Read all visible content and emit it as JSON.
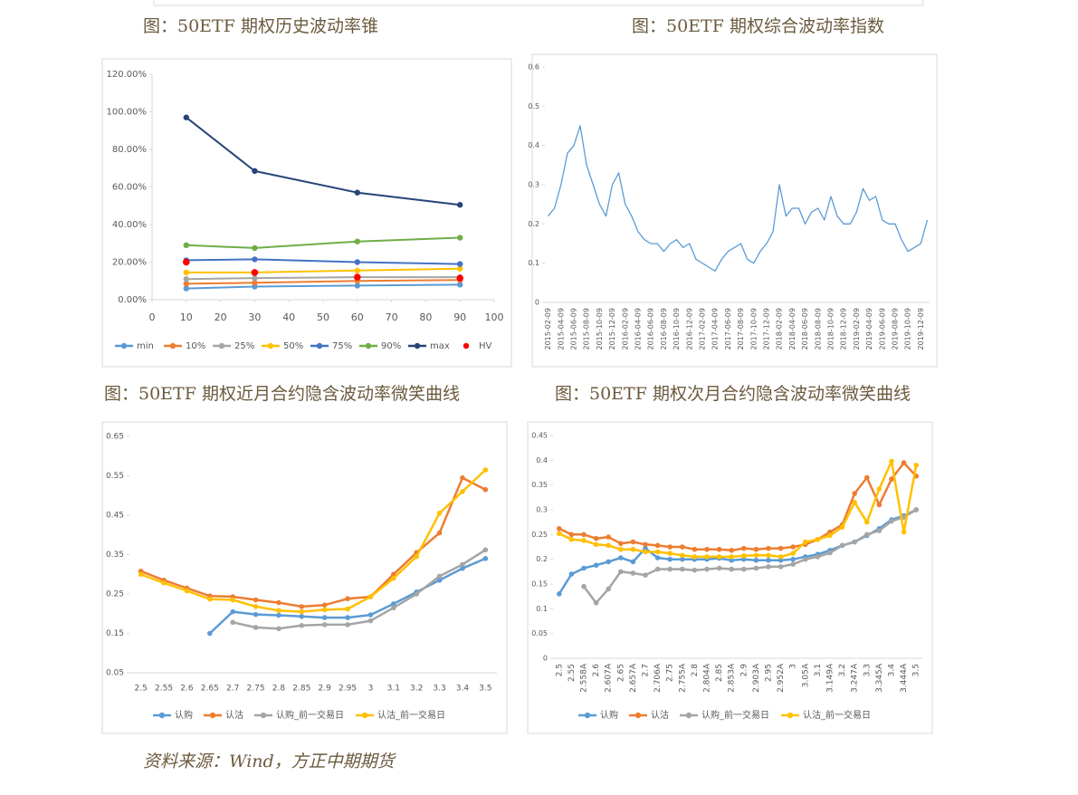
{
  "chart_data": [
    {
      "type": "line",
      "caption": "图：50ETF 期权历史波动率锥",
      "x": [
        10,
        30,
        60,
        90
      ],
      "xlim": [
        0,
        100
      ],
      "xticks": [
        0,
        10,
        20,
        30,
        40,
        50,
        60,
        70,
        80,
        90,
        100
      ],
      "ylim": [
        0,
        1.2
      ],
      "yticks": [
        {
          "value": 0,
          "label": "0.00%"
        },
        {
          "value": 0.2,
          "label": "20.00%"
        },
        {
          "value": 0.4,
          "label": "40.00%"
        },
        {
          "value": 0.6,
          "label": "60.00%"
        },
        {
          "value": 0.8,
          "label": "80.00%"
        },
        {
          "value": 1.0,
          "label": "100.00%"
        },
        {
          "value": 1.2,
          "label": "120.00%"
        }
      ],
      "markers": true,
      "series": [
        {
          "name": "min",
          "color": "#5b9bd5",
          "values": [
            0.06,
            0.07,
            0.075,
            0.08
          ]
        },
        {
          "name": "10%",
          "color": "#ed7d31",
          "values": [
            0.085,
            0.09,
            0.1,
            0.105
          ]
        },
        {
          "name": "25%",
          "color": "#a5a5a5",
          "values": [
            0.11,
            0.115,
            0.12,
            0.12
          ]
        },
        {
          "name": "50%",
          "color": "#ffc000",
          "values": [
            0.145,
            0.145,
            0.155,
            0.165
          ]
        },
        {
          "name": "75%",
          "color": "#4472c4",
          "values": [
            0.21,
            0.215,
            0.2,
            0.19
          ]
        },
        {
          "name": "90%",
          "color": "#70ad47",
          "values": [
            0.29,
            0.275,
            0.31,
            0.33
          ]
        },
        {
          "name": "max",
          "color": "#264478",
          "values": [
            0.97,
            0.685,
            0.57,
            0.505
          ]
        },
        {
          "name": "HV",
          "color": "#ff0000",
          "line": false,
          "values": [
            0.2,
            0.145,
            0.12,
            0.115
          ]
        }
      ]
    },
    {
      "type": "line",
      "caption": "图：50ETF 期权综合波动率指数",
      "categories": [
        "2015-02-09",
        null,
        "2015-04-09",
        null,
        "2015-06-09",
        null,
        "2015-08-09",
        null,
        "2015-10-09",
        null,
        "2015-12-09",
        null,
        "2016-02-09",
        null,
        "2016-04-09",
        null,
        "2016-06-09",
        null,
        "2016-08-09",
        null,
        "2016-10-09",
        null,
        "2016-12-09",
        null,
        "2017-02-09",
        null,
        "2017-04-09",
        null,
        "2017-06-09",
        null,
        "2017-08-09",
        null,
        "2017-10-09",
        null,
        "2017-12-09",
        null,
        "2018-02-09",
        null,
        "2018-04-09",
        null,
        "2018-06-09",
        null,
        "2018-08-09",
        null,
        "2018-10-09",
        null,
        "2018-12-09",
        null,
        "2019-02-09",
        null,
        "2019-04-09",
        null,
        "2019-06-09",
        null,
        "2019-08-09",
        null,
        "2019-10-09",
        null,
        "2019-12-09",
        null
      ],
      "ylim": [
        0,
        0.6
      ],
      "yticks": [
        0,
        0.1,
        0.2,
        0.3,
        0.4,
        0.5,
        0.6
      ],
      "markers": false,
      "series": [
        {
          "name": null,
          "color": "#5b9bd5",
          "values": [
            0.22,
            0.24,
            0.3,
            0.38,
            0.4,
            0.45,
            0.35,
            0.3,
            0.25,
            0.22,
            0.3,
            0.33,
            0.25,
            0.22,
            0.18,
            0.16,
            0.15,
            0.15,
            0.13,
            0.15,
            0.16,
            0.14,
            0.15,
            0.11,
            0.1,
            0.09,
            0.08,
            0.11,
            0.13,
            0.14,
            0.15,
            0.11,
            0.1,
            0.13,
            0.15,
            0.18,
            0.3,
            0.22,
            0.24,
            0.24,
            0.2,
            0.23,
            0.24,
            0.21,
            0.27,
            0.22,
            0.2,
            0.2,
            0.23,
            0.29,
            0.26,
            0.27,
            0.21,
            0.2,
            0.2,
            0.16,
            0.13,
            0.14,
            0.15,
            0.21
          ]
        }
      ]
    },
    {
      "type": "line",
      "caption": "图：50ETF 期权近月合约隐含波动率微笑曲线",
      "categories": [
        "2.5",
        "2.55",
        "2.6",
        "2.65",
        "2.7",
        "2.75",
        "2.8",
        "2.85",
        "2.9",
        "2.95",
        "3",
        "3.1",
        "3.2",
        "3.3",
        "3.4",
        "3.5"
      ],
      "ylim": [
        0.05,
        0.65
      ],
      "yticks": [
        0.05,
        0.15,
        0.25,
        0.35,
        0.45,
        0.55,
        0.65
      ],
      "markers": true,
      "series": [
        {
          "name": "认购",
          "color": "#5b9bd5",
          "values": [
            null,
            null,
            null,
            0.15,
            0.205,
            0.198,
            0.196,
            0.193,
            0.19,
            0.19,
            0.197,
            0.225,
            0.255,
            0.285,
            0.315,
            0.34
          ]
        },
        {
          "name": "认沽",
          "color": "#ed7d31",
          "values": [
            0.308,
            0.285,
            0.265,
            0.245,
            0.243,
            0.235,
            0.228,
            0.218,
            0.222,
            0.238,
            0.243,
            0.3,
            0.355,
            0.405,
            0.545,
            0.515
          ]
        },
        {
          "name": "认购_前一交易日",
          "color": "#a5a5a5",
          "values": [
            null,
            null,
            null,
            null,
            0.178,
            0.165,
            0.162,
            0.17,
            0.172,
            0.172,
            0.182,
            0.215,
            0.25,
            0.295,
            0.325,
            0.362
          ]
        },
        {
          "name": "认沽_前一交易日",
          "color": "#ffc000",
          "values": [
            0.3,
            0.278,
            0.258,
            0.237,
            0.235,
            0.218,
            0.208,
            0.205,
            0.21,
            0.212,
            0.243,
            0.29,
            0.345,
            0.455,
            0.51,
            0.565
          ]
        }
      ]
    },
    {
      "type": "line",
      "caption": "图：50ETF 期权次月合约隐含波动率微笑曲线",
      "categories": [
        "2.5",
        "2.55",
        "2.558A",
        "2.6",
        "2.607A",
        "2.65",
        "2.657A",
        "2.7",
        "2.706A",
        "2.75",
        "2.755A",
        "2.8",
        "2.804A",
        "2.85",
        "2.853A",
        "2.9",
        "2.903A",
        "2.95",
        "2.952A",
        "3",
        "3.05A",
        "3.1",
        "3.149A",
        "3.2",
        "3.247A",
        "3.3",
        "3.345A",
        "3.4",
        "3.444A",
        "3.5"
      ],
      "ylim": [
        0,
        0.45
      ],
      "yticks": [
        0,
        0.05,
        0.1,
        0.15,
        0.2,
        0.25,
        0.3,
        0.35,
        0.4,
        0.45
      ],
      "markers": true,
      "series": [
        {
          "name": "认购",
          "color": "#5b9bd5",
          "values": [
            0.13,
            0.17,
            0.182,
            0.188,
            0.195,
            0.203,
            0.195,
            0.222,
            0.203,
            0.2,
            0.2,
            0.2,
            0.2,
            0.202,
            0.198,
            0.2,
            0.198,
            0.198,
            0.198,
            0.2,
            0.205,
            0.21,
            0.218,
            0.228,
            0.235,
            0.248,
            0.262,
            0.28,
            0.288,
            0.3
          ]
        },
        {
          "name": "认沽",
          "color": "#ed7d31",
          "values": [
            0.262,
            0.25,
            0.25,
            0.242,
            0.245,
            0.232,
            0.235,
            0.23,
            0.228,
            0.225,
            0.225,
            0.22,
            0.22,
            0.22,
            0.218,
            0.222,
            0.22,
            0.222,
            0.222,
            0.225,
            0.23,
            0.24,
            0.255,
            0.27,
            0.333,
            0.365,
            0.31,
            0.362,
            0.395,
            0.368
          ]
        },
        {
          "name": "认购_前一交易日",
          "color": "#a5a5a5",
          "values": [
            null,
            null,
            0.145,
            0.112,
            0.14,
            0.175,
            0.172,
            0.168,
            0.18,
            0.18,
            0.18,
            0.178,
            0.18,
            0.182,
            0.18,
            0.18,
            0.182,
            0.185,
            0.185,
            0.19,
            0.2,
            0.205,
            0.213,
            0.228,
            0.235,
            0.25,
            0.258,
            0.277,
            0.285,
            0.3
          ]
        },
        {
          "name": "认沽_前一交易日",
          "color": "#ffc000",
          "values": [
            0.252,
            0.24,
            0.238,
            0.23,
            0.228,
            0.22,
            0.22,
            0.215,
            0.215,
            0.212,
            0.208,
            0.205,
            0.205,
            0.205,
            0.205,
            0.207,
            0.208,
            0.208,
            0.205,
            0.212,
            0.235,
            0.24,
            0.248,
            0.265,
            0.315,
            0.275,
            0.342,
            0.398,
            0.255,
            0.39
          ]
        }
      ]
    }
  ],
  "source": "资料来源：Wind，方正中期期货"
}
